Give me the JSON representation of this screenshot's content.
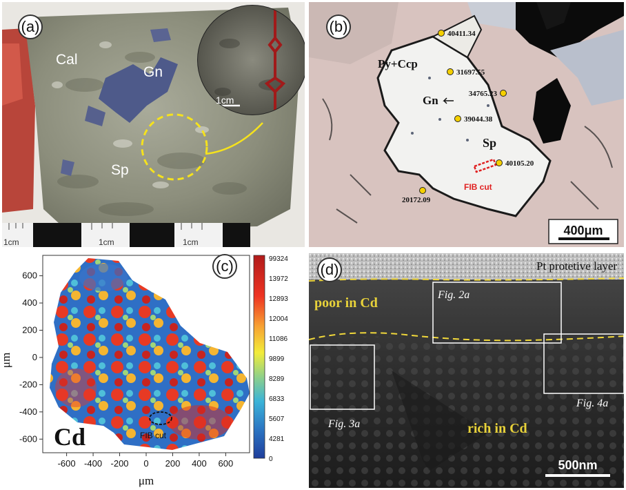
{
  "panel_a": {
    "label": "(a)",
    "minerals": {
      "cal": "Cal",
      "gn": "Gn",
      "sp": "Sp"
    },
    "inset_scale": "1cm",
    "ruler_labels": [
      "1cm",
      "1cm",
      "1cm"
    ]
  },
  "panel_b": {
    "label": "(b)",
    "minerals": {
      "pyccp": "Py+Ccp",
      "gn": "Gn",
      "sp": "Sp"
    },
    "points": [
      "40411.34",
      "31697.55",
      "34765.23",
      "39044.38",
      "40105.20",
      "20172.09"
    ],
    "fib": "FIB cut",
    "scale": "400μm",
    "colors": {
      "point": "#f5d000",
      "fib": "#e02020"
    }
  },
  "panel_c": {
    "label": "(c)",
    "element": "Cd",
    "fib": "FIB cut",
    "chart_data": {
      "type": "heatmap",
      "xlabel": "μm",
      "ylabel": "μm",
      "xticks": [
        -600,
        -400,
        -200,
        0,
        200,
        400,
        600
      ],
      "yticks": [
        600,
        400,
        200,
        0,
        -200,
        -400,
        -600
      ],
      "colorbar": [
        "99324",
        "13972",
        "12893",
        "12004",
        "11086",
        "9899",
        "8289",
        "6833",
        "5607",
        "4281",
        "0"
      ]
    }
  },
  "panel_d": {
    "label": "(d)",
    "top_layer": "Pt protetive layer",
    "poor": "poor in Cd",
    "rich": "rich in Cd",
    "figs": [
      "Fig. 2a",
      "Fig. 3a",
      "Fig. 4a"
    ],
    "scale": "500nm",
    "colors": {
      "dash": "#f2d93b",
      "text": "#e8d23a"
    }
  }
}
